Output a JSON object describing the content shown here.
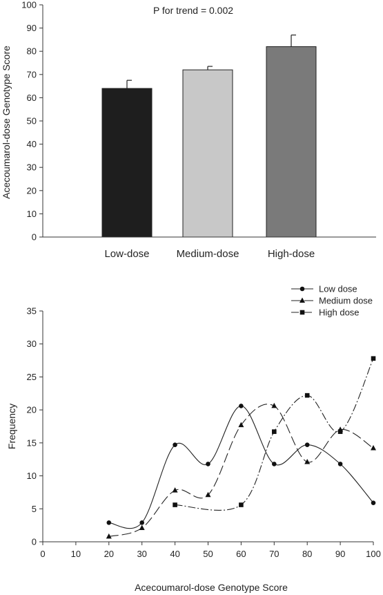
{
  "chart_data": [
    {
      "type": "bar",
      "annotation": "P for trend = 0.002",
      "ylabel": "Acecoumarol-dose Genotype Score",
      "xlabel": "",
      "categories": [
        "Low-dose",
        "Medium-dose",
        "High-dose"
      ],
      "values": [
        64,
        72,
        82
      ],
      "errors": [
        3.5,
        1.5,
        5
      ],
      "colors": [
        "#1e1e1e",
        "#c8c8c8",
        "#7a7a7a"
      ],
      "ylim": [
        0,
        100
      ],
      "yticks": [
        0,
        10,
        20,
        30,
        40,
        50,
        60,
        70,
        80,
        90,
        100
      ],
      "grid": false
    },
    {
      "type": "line",
      "xlabel": "Acecoumarol-dose Genotype Score",
      "ylabel": "Frequency",
      "xlim": [
        0,
        100
      ],
      "ylim": [
        0,
        35
      ],
      "xticks": [
        0,
        10,
        20,
        30,
        40,
        50,
        60,
        70,
        80,
        90,
        100
      ],
      "yticks": [
        0,
        5,
        10,
        15,
        20,
        25,
        30,
        35
      ],
      "legend_position": "top-right",
      "grid": false,
      "series": [
        {
          "name": "Low dose",
          "marker": "circle",
          "dash": "solid",
          "x": [
            20,
            30,
            40,
            50,
            60,
            70,
            80,
            90,
            100
          ],
          "y": [
            2.9,
            2.9,
            14.7,
            11.8,
            20.6,
            11.8,
            14.7,
            11.8,
            5.9
          ]
        },
        {
          "name": "Medium dose",
          "marker": "triangle",
          "dash": "long-dash",
          "x": [
            20,
            30,
            40,
            50,
            60,
            70,
            80,
            90,
            100
          ],
          "y": [
            0.8,
            2.1,
            7.8,
            7.1,
            17.7,
            20.6,
            12.1,
            17.0,
            14.2
          ]
        },
        {
          "name": "High dose",
          "marker": "square",
          "dash": "dash-dot",
          "x": [
            40,
            60,
            70,
            80,
            90,
            100
          ],
          "y": [
            5.6,
            5.6,
            16.7,
            22.2,
            16.7,
            27.8
          ]
        }
      ]
    }
  ]
}
